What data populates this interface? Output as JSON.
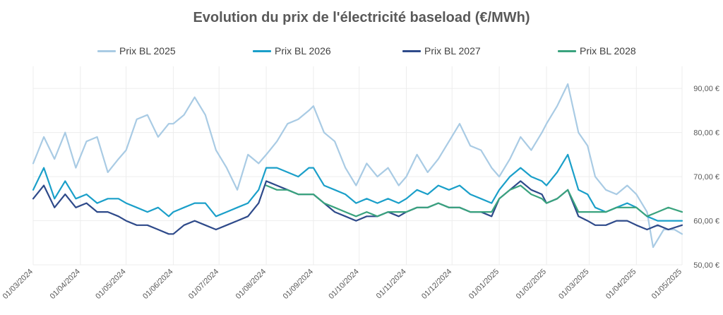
{
  "chart_data": {
    "type": "line",
    "title": "Evolution du prix de l'électricité baseload (€/MWh)",
    "legend_position": "top",
    "grid": true,
    "x_ticks": [
      "01/03/2024",
      "01/04/2024",
      "01/05/2024",
      "01/06/2024",
      "01/07/2024",
      "01/08/2024",
      "01/09/2024",
      "01/10/2024",
      "01/11/2024",
      "01/12/2024",
      "01/01/2025",
      "01/02/2025",
      "01/03/2025",
      "01/04/2025",
      "01/05/2025"
    ],
    "xlim": [
      "01/03/2024",
      "01/05/2025"
    ],
    "y_ticks": [
      "50,00 €",
      "60,00 €",
      "70,00 €",
      "80,00 €",
      "90,00 €"
    ],
    "ylim": [
      50,
      95
    ],
    "series": [
      {
        "name": "Prix BL 2025",
        "color": "#a9cbe4",
        "points": [
          [
            "01/03/2024",
            73
          ],
          [
            "08/03/2024",
            79
          ],
          [
            "15/03/2024",
            74
          ],
          [
            "22/03/2024",
            80
          ],
          [
            "29/03/2024",
            72
          ],
          [
            "05/04/2024",
            78
          ],
          [
            "12/04/2024",
            79
          ],
          [
            "19/04/2024",
            71
          ],
          [
            "26/04/2024",
            74
          ],
          [
            "01/05/2024",
            76
          ],
          [
            "08/05/2024",
            83
          ],
          [
            "15/05/2024",
            84
          ],
          [
            "22/05/2024",
            79
          ],
          [
            "29/05/2024",
            82
          ],
          [
            "01/06/2024",
            82
          ],
          [
            "08/06/2024",
            84
          ],
          [
            "15/06/2024",
            88
          ],
          [
            "22/06/2024",
            84
          ],
          [
            "29/06/2024",
            76
          ],
          [
            "06/07/2024",
            72
          ],
          [
            "13/07/2024",
            67
          ],
          [
            "20/07/2024",
            75
          ],
          [
            "27/07/2024",
            73
          ],
          [
            "01/08/2024",
            75
          ],
          [
            "08/08/2024",
            78
          ],
          [
            "15/08/2024",
            82
          ],
          [
            "22/08/2024",
            83
          ],
          [
            "29/08/2024",
            85
          ],
          [
            "01/09/2024",
            86
          ],
          [
            "08/09/2024",
            80
          ],
          [
            "15/09/2024",
            78
          ],
          [
            "22/09/2024",
            72
          ],
          [
            "29/09/2024",
            68
          ],
          [
            "06/10/2024",
            73
          ],
          [
            "13/10/2024",
            70
          ],
          [
            "20/10/2024",
            72
          ],
          [
            "27/10/2024",
            68
          ],
          [
            "01/11/2024",
            70
          ],
          [
            "08/11/2024",
            75
          ],
          [
            "15/11/2024",
            71
          ],
          [
            "22/11/2024",
            74
          ],
          [
            "29/11/2024",
            78
          ],
          [
            "06/12/2024",
            82
          ],
          [
            "13/12/2024",
            77
          ],
          [
            "20/12/2024",
            76
          ],
          [
            "27/12/2024",
            72
          ],
          [
            "01/01/2025",
            70
          ],
          [
            "08/01/2025",
            74
          ],
          [
            "15/01/2025",
            79
          ],
          [
            "22/01/2025",
            76
          ],
          [
            "29/01/2025",
            80
          ],
          [
            "01/02/2025",
            82
          ],
          [
            "08/02/2025",
            86
          ],
          [
            "15/02/2025",
            91
          ],
          [
            "22/02/2025",
            80
          ],
          [
            "28/02/2025",
            77
          ],
          [
            "05/03/2025",
            70
          ],
          [
            "12/03/2025",
            67
          ],
          [
            "19/03/2025",
            66
          ],
          [
            "26/03/2025",
            68
          ],
          [
            "01/04/2025",
            66
          ],
          [
            "08/04/2025",
            62
          ],
          [
            "12/04/2025",
            54
          ],
          [
            "19/04/2025",
            58
          ],
          [
            "26/04/2025",
            58
          ],
          [
            "01/05/2025",
            57
          ]
        ]
      },
      {
        "name": "Prix BL 2026",
        "color": "#1a9fc9",
        "points": [
          [
            "01/03/2024",
            67
          ],
          [
            "08/03/2024",
            72
          ],
          [
            "15/03/2024",
            65
          ],
          [
            "22/03/2024",
            69
          ],
          [
            "29/03/2024",
            65
          ],
          [
            "05/04/2024",
            66
          ],
          [
            "12/04/2024",
            64
          ],
          [
            "19/04/2024",
            65
          ],
          [
            "26/04/2024",
            65
          ],
          [
            "01/05/2024",
            64
          ],
          [
            "08/05/2024",
            63
          ],
          [
            "15/05/2024",
            62
          ],
          [
            "22/05/2024",
            63
          ],
          [
            "29/05/2024",
            61
          ],
          [
            "01/06/2024",
            62
          ],
          [
            "08/06/2024",
            63
          ],
          [
            "15/06/2024",
            64
          ],
          [
            "22/06/2024",
            64
          ],
          [
            "29/06/2024",
            61
          ],
          [
            "06/07/2024",
            62
          ],
          [
            "13/07/2024",
            63
          ],
          [
            "20/07/2024",
            64
          ],
          [
            "27/07/2024",
            67
          ],
          [
            "01/08/2024",
            72
          ],
          [
            "08/08/2024",
            72
          ],
          [
            "15/08/2024",
            71
          ],
          [
            "22/08/2024",
            70
          ],
          [
            "29/08/2024",
            72
          ],
          [
            "01/09/2024",
            72
          ],
          [
            "08/09/2024",
            68
          ],
          [
            "15/09/2024",
            67
          ],
          [
            "22/09/2024",
            66
          ],
          [
            "29/09/2024",
            64
          ],
          [
            "06/10/2024",
            65
          ],
          [
            "13/10/2024",
            64
          ],
          [
            "20/10/2024",
            65
          ],
          [
            "27/10/2024",
            64
          ],
          [
            "01/11/2024",
            65
          ],
          [
            "08/11/2024",
            67
          ],
          [
            "15/11/2024",
            66
          ],
          [
            "22/11/2024",
            68
          ],
          [
            "29/11/2024",
            67
          ],
          [
            "06/12/2024",
            68
          ],
          [
            "13/12/2024",
            66
          ],
          [
            "20/12/2024",
            65
          ],
          [
            "27/12/2024",
            64
          ],
          [
            "01/01/2025",
            67
          ],
          [
            "08/01/2025",
            70
          ],
          [
            "15/01/2025",
            72
          ],
          [
            "22/01/2025",
            70
          ],
          [
            "29/01/2025",
            69
          ],
          [
            "01/02/2025",
            68
          ],
          [
            "08/02/2025",
            71
          ],
          [
            "15/02/2025",
            75
          ],
          [
            "22/02/2025",
            67
          ],
          [
            "28/02/2025",
            66
          ],
          [
            "05/03/2025",
            63
          ],
          [
            "12/03/2025",
            62
          ],
          [
            "19/03/2025",
            63
          ],
          [
            "26/03/2025",
            64
          ],
          [
            "01/04/2025",
            63
          ],
          [
            "08/04/2025",
            61
          ],
          [
            "15/04/2025",
            60
          ],
          [
            "22/04/2025",
            60
          ],
          [
            "01/05/2025",
            60
          ]
        ]
      },
      {
        "name": "Prix BL 2027",
        "color": "#2e4a8a",
        "points": [
          [
            "01/03/2024",
            65
          ],
          [
            "08/03/2024",
            68
          ],
          [
            "15/03/2024",
            63
          ],
          [
            "22/03/2024",
            66
          ],
          [
            "29/03/2024",
            63
          ],
          [
            "05/04/2024",
            64
          ],
          [
            "12/04/2024",
            62
          ],
          [
            "19/04/2024",
            62
          ],
          [
            "26/04/2024",
            61
          ],
          [
            "01/05/2024",
            60
          ],
          [
            "08/05/2024",
            59
          ],
          [
            "15/05/2024",
            59
          ],
          [
            "22/05/2024",
            58
          ],
          [
            "29/05/2024",
            57
          ],
          [
            "01/06/2024",
            57
          ],
          [
            "08/06/2024",
            59
          ],
          [
            "15/06/2024",
            60
          ],
          [
            "22/06/2024",
            59
          ],
          [
            "29/06/2024",
            58
          ],
          [
            "06/07/2024",
            59
          ],
          [
            "13/07/2024",
            60
          ],
          [
            "20/07/2024",
            61
          ],
          [
            "27/07/2024",
            64
          ],
          [
            "01/08/2024",
            69
          ],
          [
            "08/08/2024",
            68
          ],
          [
            "15/08/2024",
            67
          ],
          [
            "22/08/2024",
            66
          ],
          [
            "29/08/2024",
            66
          ],
          [
            "01/09/2024",
            66
          ],
          [
            "08/09/2024",
            64
          ],
          [
            "15/09/2024",
            62
          ],
          [
            "22/09/2024",
            61
          ],
          [
            "29/09/2024",
            60
          ],
          [
            "06/10/2024",
            61
          ],
          [
            "13/10/2024",
            61
          ],
          [
            "20/10/2024",
            62
          ],
          [
            "27/10/2024",
            61
          ],
          [
            "01/11/2024",
            62
          ],
          [
            "08/11/2024",
            63
          ],
          [
            "15/11/2024",
            63
          ],
          [
            "22/11/2024",
            64
          ],
          [
            "29/11/2024",
            63
          ],
          [
            "06/12/2024",
            63
          ],
          [
            "13/12/2024",
            62
          ],
          [
            "20/12/2024",
            62
          ],
          [
            "27/12/2024",
            61
          ],
          [
            "01/01/2025",
            65
          ],
          [
            "08/01/2025",
            67
          ],
          [
            "15/01/2025",
            69
          ],
          [
            "22/01/2025",
            67
          ],
          [
            "29/01/2025",
            66
          ],
          [
            "01/02/2025",
            64
          ],
          [
            "08/02/2025",
            65
          ],
          [
            "15/02/2025",
            67
          ],
          [
            "22/02/2025",
            61
          ],
          [
            "28/02/2025",
            60
          ],
          [
            "05/03/2025",
            59
          ],
          [
            "12/03/2025",
            59
          ],
          [
            "19/03/2025",
            60
          ],
          [
            "26/03/2025",
            60
          ],
          [
            "01/04/2025",
            59
          ],
          [
            "08/04/2025",
            58
          ],
          [
            "15/04/2025",
            59
          ],
          [
            "22/04/2025",
            58
          ],
          [
            "01/05/2025",
            59
          ]
        ]
      },
      {
        "name": "Prix BL 2028",
        "color": "#3aa37e",
        "points": [
          [
            "01/08/2024",
            68
          ],
          [
            "08/08/2024",
            67
          ],
          [
            "15/08/2024",
            67
          ],
          [
            "22/08/2024",
            66
          ],
          [
            "29/08/2024",
            66
          ],
          [
            "01/09/2024",
            66
          ],
          [
            "08/09/2024",
            64
          ],
          [
            "15/09/2024",
            63
          ],
          [
            "22/09/2024",
            62
          ],
          [
            "29/09/2024",
            61
          ],
          [
            "06/10/2024",
            62
          ],
          [
            "13/10/2024",
            61
          ],
          [
            "20/10/2024",
            62
          ],
          [
            "27/10/2024",
            62
          ],
          [
            "01/11/2024",
            62
          ],
          [
            "08/11/2024",
            63
          ],
          [
            "15/11/2024",
            63
          ],
          [
            "22/11/2024",
            64
          ],
          [
            "29/11/2024",
            63
          ],
          [
            "06/12/2024",
            63
          ],
          [
            "13/12/2024",
            62
          ],
          [
            "20/12/2024",
            62
          ],
          [
            "27/12/2024",
            62
          ],
          [
            "01/01/2025",
            65
          ],
          [
            "08/01/2025",
            67
          ],
          [
            "15/01/2025",
            68
          ],
          [
            "22/01/2025",
            66
          ],
          [
            "29/01/2025",
            65
          ],
          [
            "01/02/2025",
            64
          ],
          [
            "08/02/2025",
            65
          ],
          [
            "15/02/2025",
            67
          ],
          [
            "22/02/2025",
            62
          ],
          [
            "28/02/2025",
            62
          ],
          [
            "05/03/2025",
            62
          ],
          [
            "12/03/2025",
            62
          ],
          [
            "19/03/2025",
            63
          ],
          [
            "26/03/2025",
            63
          ],
          [
            "01/04/2025",
            63
          ],
          [
            "08/04/2025",
            61
          ],
          [
            "15/04/2025",
            62
          ],
          [
            "22/04/2025",
            63
          ],
          [
            "01/05/2025",
            62
          ]
        ]
      }
    ]
  }
}
